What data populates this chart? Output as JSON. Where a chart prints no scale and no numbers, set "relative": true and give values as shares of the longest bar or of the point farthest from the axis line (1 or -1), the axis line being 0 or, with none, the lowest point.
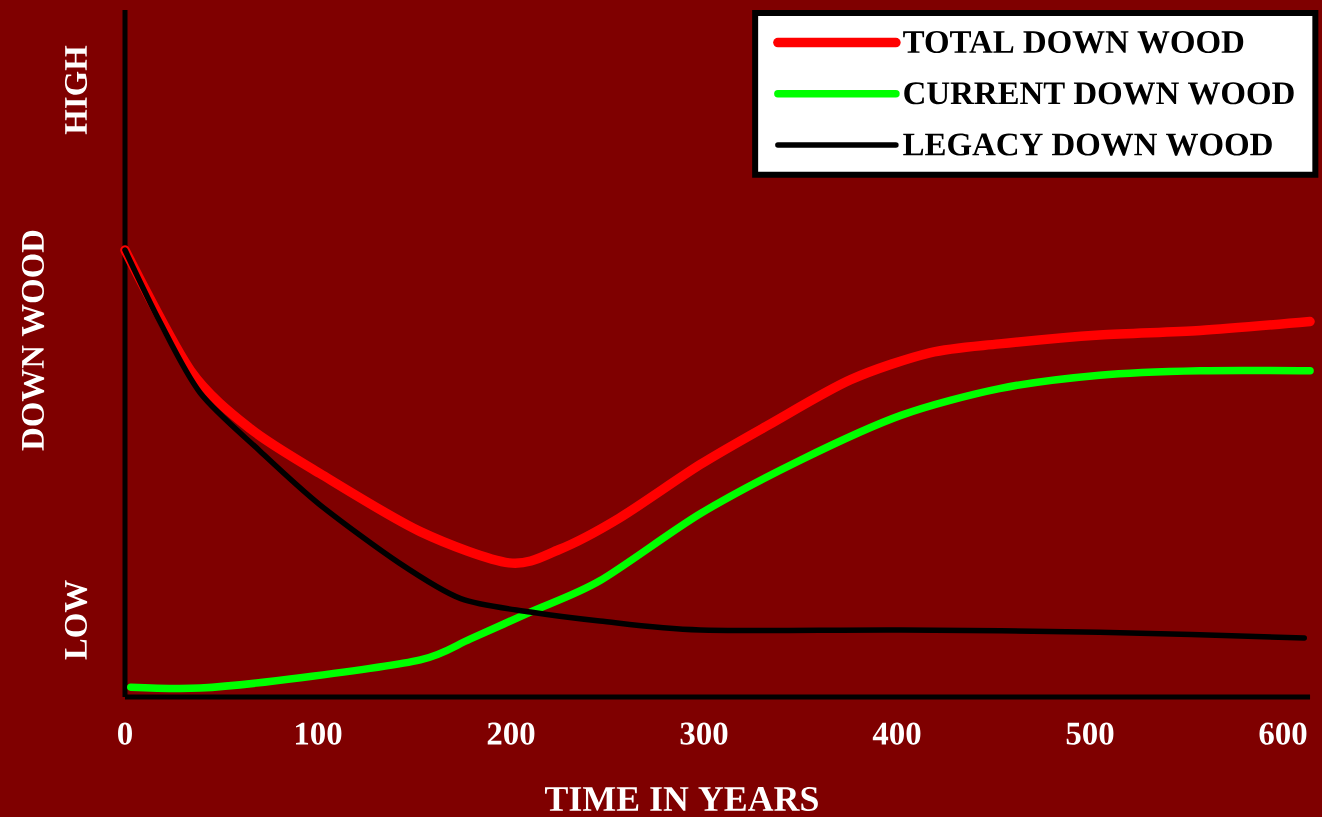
{
  "chart_data": {
    "type": "line",
    "relative": true,
    "xlabel": "TIME IN YEARS",
    "ylabel": "DOWN WOOD",
    "annotations": [
      "LOW",
      "HIGH"
    ],
    "xlim": [
      0,
      614
    ],
    "xticks": [
      0,
      100,
      200,
      300,
      400,
      500,
      600
    ],
    "grid": false,
    "legend": "top right",
    "marker": "none",
    "line_style": "solid",
    "series": [
      {
        "name": "TOTAL DOWN WOOD",
        "color": "#ff0000",
        "x": [
          0,
          34,
          65,
          101,
          153,
          199,
          225,
          256,
          298,
          334,
          376,
          417,
          453,
          505,
          557,
          614
        ],
        "values": [
          1.0,
          0.73,
          0.6,
          0.5,
          0.37,
          0.3,
          0.33,
          0.4,
          0.52,
          0.61,
          0.71,
          0.77,
          0.79,
          0.81,
          0.82,
          0.84
        ]
      },
      {
        "name": "CURRENT DOWN WOOD",
        "color": "#00ff00",
        "x": [
          3,
          39,
          91,
          153,
          179,
          210,
          246,
          298,
          350,
          402,
          453,
          505,
          557,
          614
        ],
        "values": [
          0.022,
          0.02,
          0.043,
          0.083,
          0.13,
          0.19,
          0.26,
          0.41,
          0.53,
          0.63,
          0.69,
          0.72,
          0.73,
          0.73
        ]
      },
      {
        "name": "LEGACY DOWN WOOD",
        "color": "#000000",
        "x": [
          0,
          18,
          39,
          70,
          101,
          142,
          174,
          210,
          246,
          298,
          402,
          505,
          611
        ],
        "values": [
          1.0,
          0.84,
          0.68,
          0.55,
          0.43,
          0.3,
          0.22,
          0.19,
          0.17,
          0.15,
          0.15,
          0.145,
          0.132
        ]
      }
    ]
  }
}
